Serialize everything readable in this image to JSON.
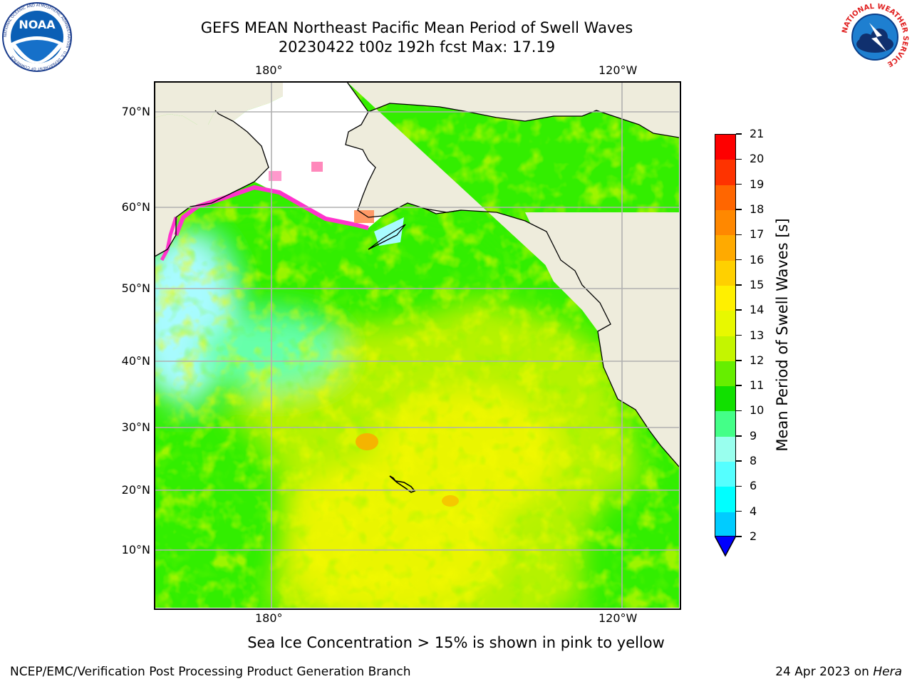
{
  "header": {
    "title_line1": "GEFS MEAN Northeast Pacific Mean Period of Swell Waves",
    "title_line2": "20230422 t00z 192h fcst   Max: 17.19"
  },
  "logos": {
    "noaa_text": "NOAA",
    "noaa_ring_text": "NATIONAL OCEANIC AND ATMOSPHERIC ADMINISTRATION · U.S. DEPARTMENT OF COMMERCE",
    "nws_ring_text": "NATIONAL WEATHER SERVICE"
  },
  "map": {
    "lon_top_labels": [
      "180°",
      "120°W"
    ],
    "lon_bottom_labels": [
      "180°",
      "120°W"
    ],
    "lat_labels": [
      "70°N",
      "60°N",
      "50°N",
      "40°N",
      "30°N",
      "20°N",
      "10°N"
    ],
    "colors": {
      "land": "#eeecdc",
      "ocean_green": "#33ee00",
      "ocean_yellowgreen": "#b5f200",
      "ocean_yellow": "#eaf500",
      "ocean_cyan": "#a8fbff",
      "sea_ice_pink": "#ff33cc",
      "grid": "#b0b0b0"
    }
  },
  "colorbar": {
    "label": "Mean Period of Swell Waves [s]",
    "ticks": [
      "21",
      "20",
      "19",
      "18",
      "17",
      "16",
      "15",
      "14",
      "13",
      "12",
      "11",
      "10",
      "9",
      "8",
      "6",
      "4",
      "2"
    ],
    "colors": [
      "#fe0000",
      "#fe3300",
      "#ff6600",
      "#ff8800",
      "#ffaa00",
      "#ffd000",
      "#fff000",
      "#e8f800",
      "#c4f500",
      "#66ee00",
      "#11e000",
      "#44ff88",
      "#99ffee",
      "#55ffff",
      "#00ffff",
      "#00ccff",
      "#0066ff"
    ],
    "extend_color": "#0000ff"
  },
  "note": "Sea Ice Concentration > 15% is shown in pink to yellow",
  "footer": {
    "left": "NCEP/EMC/Verification Post Processing Product Generation Branch",
    "right_date": "24 Apr 2023 on ",
    "right_host": "Hera"
  }
}
